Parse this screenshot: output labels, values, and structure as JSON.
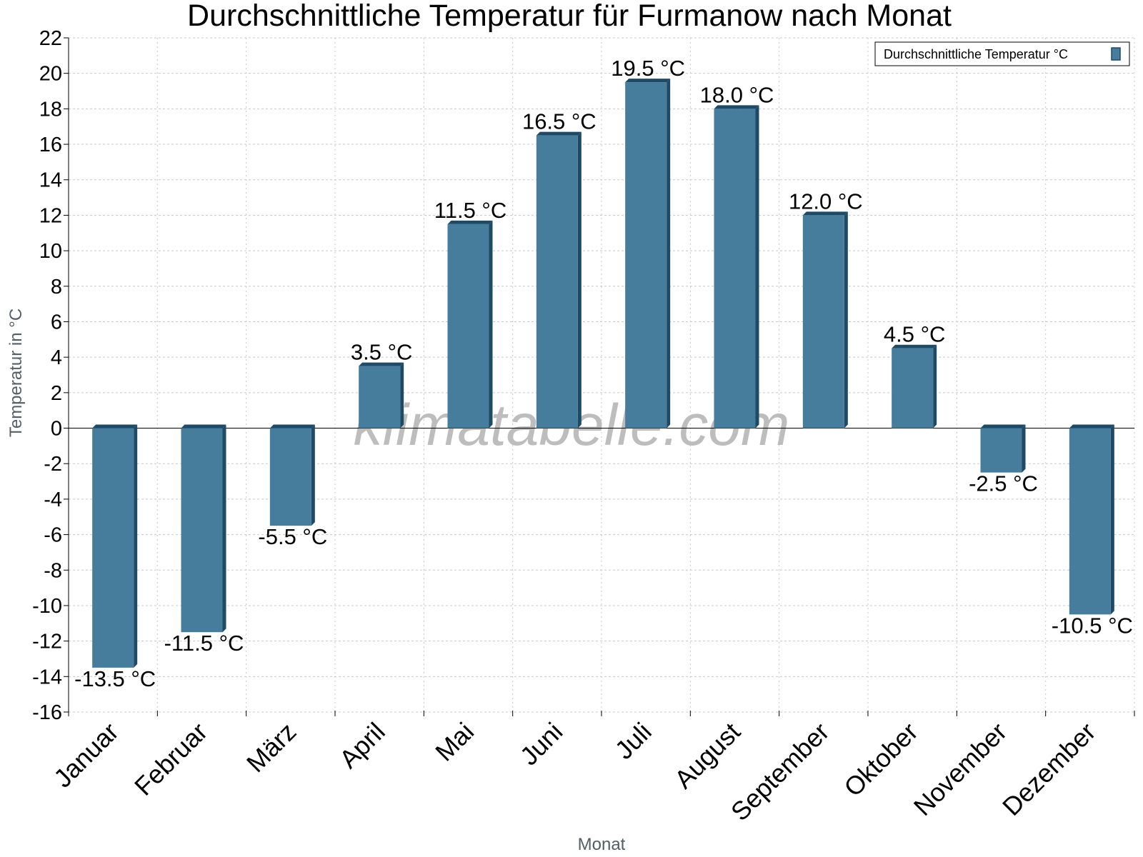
{
  "chart_data": {
    "type": "bar",
    "title": "Durchschnittliche Temperatur für Furmanow nach Monat",
    "xlabel": "Monat",
    "ylabel": "Temperatur in °C",
    "categories": [
      "Januar",
      "Februar",
      "März",
      "April",
      "Mai",
      "Juni",
      "Juli",
      "August",
      "September",
      "Oktober",
      "November",
      "Dezember"
    ],
    "series": [
      {
        "name": "Durchschnittliche Temperatur °C",
        "values": [
          -13.5,
          -11.5,
          -5.5,
          3.5,
          11.5,
          16.5,
          19.5,
          18.0,
          12.0,
          4.5,
          -2.5,
          -10.5
        ],
        "data_labels": [
          "-13.5 °C",
          "-11.5 °C",
          "-5.5 °C",
          "3.5 °C",
          "11.5 °C",
          "16.5 °C",
          "19.5 °C",
          "18.0 °C",
          "12.0 °C",
          "4.5 °C",
          "-2.5 °C",
          "-10.5 °C"
        ]
      }
    ],
    "ylim": [
      -16,
      22
    ],
    "yticks": [
      22,
      20,
      18,
      16,
      14,
      12,
      10,
      8,
      6,
      4,
      2,
      0,
      -2,
      -4,
      -6,
      -8,
      -10,
      -12,
      -14,
      -16
    ],
    "grid": true,
    "legend_position": "top-right",
    "colors": {
      "bar_front": "#467c9c",
      "bar_side": "#1f4a66",
      "zero_line": "#000000",
      "grid": "#c8c8c8"
    }
  },
  "watermark": "klimatabelle.com"
}
